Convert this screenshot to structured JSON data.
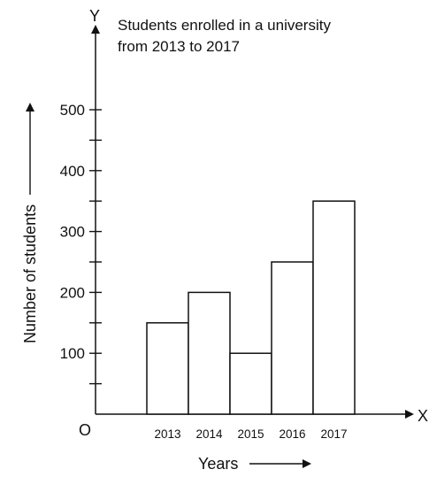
{
  "chart_data": {
    "type": "bar",
    "title_lines": [
      "Students enrolled in a university",
      "from 2013 to 2017"
    ],
    "xlabel": "Years",
    "ylabel": "Number of students",
    "x_axis_letter": "X",
    "y_axis_letter": "Y",
    "origin_label": "O",
    "categories": [
      "2013",
      "2014",
      "2015",
      "2016",
      "2017"
    ],
    "values": [
      150,
      200,
      100,
      250,
      350
    ],
    "ylim": [
      0,
      500
    ],
    "major_ticks": [
      100,
      200,
      300,
      400,
      500
    ],
    "minor_ticks": [
      50,
      150,
      250,
      350,
      450
    ],
    "grid": false,
    "legend": "none"
  }
}
